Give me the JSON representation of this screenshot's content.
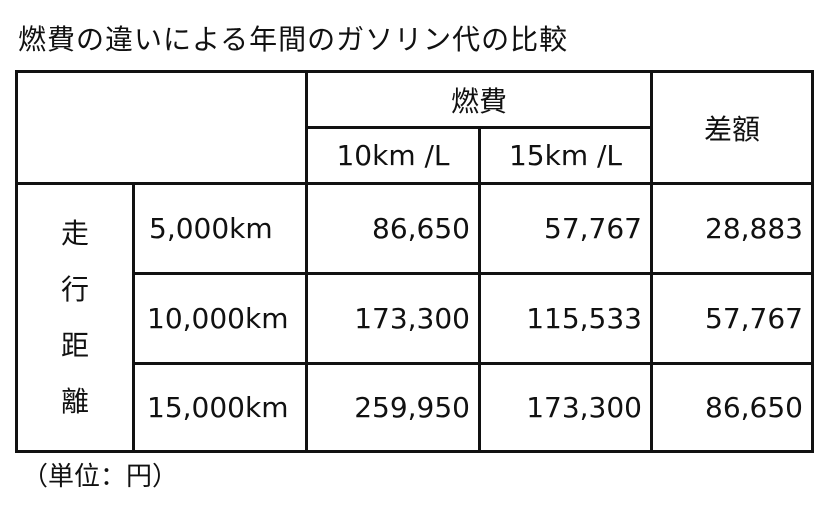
{
  "title": "燃費の違いによる年間のガソリン代の比較",
  "table": {
    "header_fuel": "燃費",
    "header_diff": "差額",
    "fuel_columns": [
      "10km /L",
      "15km /L"
    ],
    "row_group_label": [
      "走",
      "行",
      "距",
      "離"
    ],
    "rows": [
      {
        "distance": "5,000km",
        "cost_10": "86,650",
        "cost_15": "57,767",
        "diff": "28,883"
      },
      {
        "distance": "10,000km",
        "cost_10": "173,300",
        "cost_15": "115,533",
        "diff": "57,767"
      },
      {
        "distance": "15,000km",
        "cost_10": "259,950",
        "cost_15": "173,300",
        "diff": "86,650"
      }
    ]
  },
  "unit_note": "（単位：円）"
}
